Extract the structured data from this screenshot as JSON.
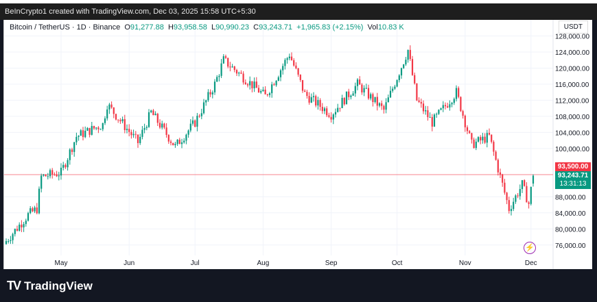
{
  "header": {
    "attribution": "BeInCrypto1 created with TradingView.com, Dec 03, 2025 15:58 UTC+5:30"
  },
  "legend": {
    "symbol": "Bitcoin / TetherUS · 1D · Binance",
    "o_label": "O",
    "o": "91,277.88",
    "h_label": "H",
    "h": "93,958.58",
    "l_label": "L",
    "l": "90,990.23",
    "c_label": "C",
    "c": "93,243.71",
    "change": "+1,965.83 (+2.15%)",
    "vol_label": "Vol",
    "vol": "10.83 K"
  },
  "currency": "USDT",
  "tags": {
    "level": "93,500.00",
    "price": "93,243.71",
    "countdown": "13:31:13"
  },
  "colors": {
    "up": "#089981",
    "down": "#f23645",
    "level": "#f23645"
  },
  "footer": {
    "brand": "TradingView"
  },
  "chart_data": {
    "type": "candlestick",
    "title": "Bitcoin / TetherUS · 1D · Binance",
    "ylim": [
      70000,
      132000
    ],
    "y_ticks": [
      "128,000.00",
      "124,000.00",
      "120,000.00",
      "116,000.00",
      "112,000.00",
      "108,000.00",
      "104,000.00",
      "100,000.00",
      "88,000.00",
      "84,000.00",
      "80,000.00",
      "76,000.00"
    ],
    "y_tick_values": [
      128000,
      124000,
      120000,
      116000,
      112000,
      108000,
      104000,
      100000,
      88000,
      84000,
      80000,
      76000
    ],
    "x_ticks": [
      "May",
      "Jun",
      "Jul",
      "Aug",
      "Sep",
      "Oct",
      "Nov",
      "Dec"
    ],
    "x_tick_days": [
      25,
      56,
      86,
      117,
      148,
      178,
      209,
      239
    ],
    "horizontal_level": 93500,
    "close_keypoints_day_price": [
      [
        0,
        77000
      ],
      [
        10,
        83500
      ],
      [
        14,
        85000
      ],
      [
        16,
        93000
      ],
      [
        25,
        94000
      ],
      [
        32,
        103000
      ],
      [
        44,
        106000
      ],
      [
        46,
        111000
      ],
      [
        60,
        101500
      ],
      [
        66,
        109000
      ],
      [
        77,
        100500
      ],
      [
        86,
        106500
      ],
      [
        95,
        116000
      ],
      [
        99,
        122000
      ],
      [
        118,
        113000
      ],
      [
        129,
        123500
      ],
      [
        136,
        113500
      ],
      [
        148,
        108500
      ],
      [
        160,
        116000
      ],
      [
        172,
        109500
      ],
      [
        183,
        124500
      ],
      [
        187,
        112000
      ],
      [
        194,
        106500
      ],
      [
        205,
        114000
      ],
      [
        212,
        101000
      ],
      [
        220,
        103000
      ],
      [
        229,
        85000
      ],
      [
        235,
        91000
      ],
      [
        238,
        86300
      ],
      [
        240,
        93243.71
      ]
    ]
  }
}
